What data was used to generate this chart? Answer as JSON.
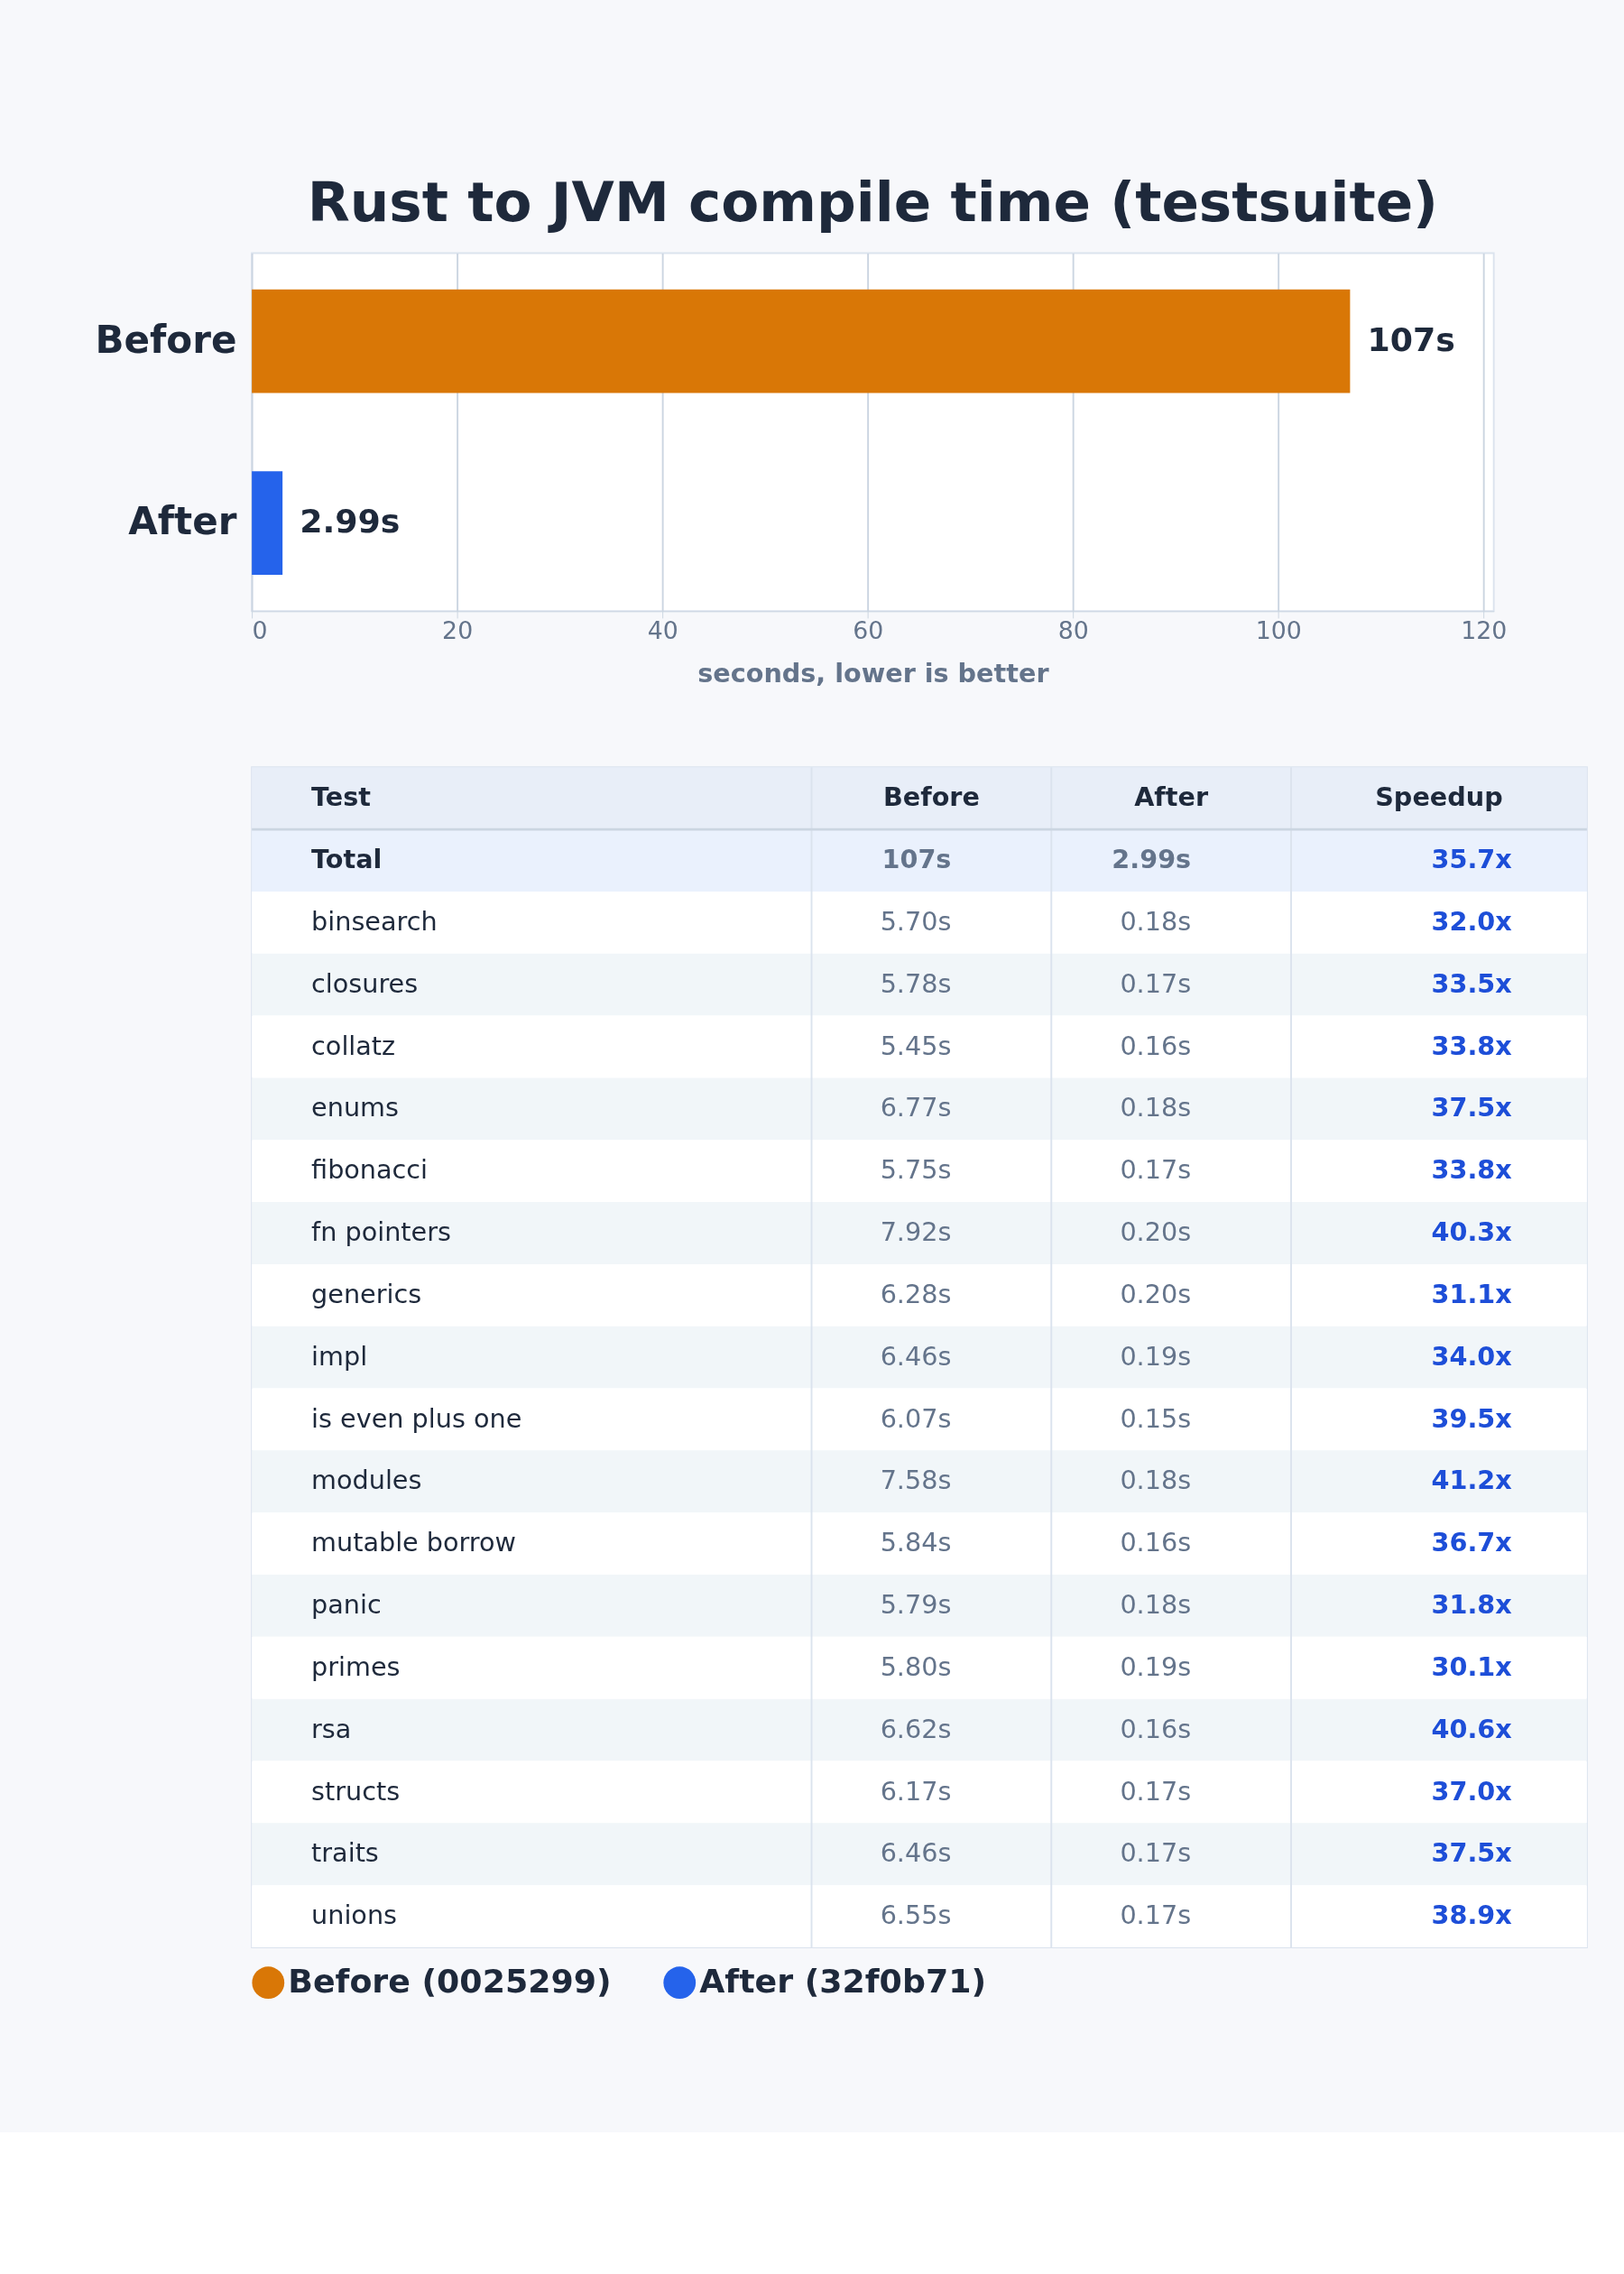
{
  "chart_data": [
    {
      "type": "bar",
      "orientation": "horizontal",
      "title": "Rust to JVM compile time (testsuite)",
      "xlabel": "seconds, lower is better",
      "categories": [
        "Before",
        "After"
      ],
      "series": [
        {
          "name": "Before (0025299)",
          "color": "#d97706",
          "values": [
            107,
            null
          ],
          "value_labels": [
            "107s",
            null
          ]
        },
        {
          "name": "After (32f0b71)",
          "color": "#2563eb",
          "values": [
            null,
            2.99
          ],
          "value_labels": [
            null,
            "2.99s"
          ]
        }
      ],
      "xlim": [
        0,
        121
      ],
      "xticks": [
        0,
        20,
        40,
        60,
        80,
        100,
        120
      ],
      "grid": "x",
      "legend": "bottom"
    },
    {
      "type": "other",
      "categories": [
        "Test",
        "Before",
        "After",
        "Speedup"
      ],
      "annotations": [
        "Total",
        "107s",
        "2.99s",
        "35.7x",
        "binsearch",
        "5.70s",
        "0.18s",
        "32.0x",
        "closures",
        "5.78s",
        "0.17s",
        "33.5x",
        "collatz",
        "5.45s",
        "0.16s",
        "33.8x",
        "enums",
        "6.77s",
        "0.18s",
        "37.5x",
        "fibonacci",
        "5.75s",
        "0.17s",
        "33.8x",
        "fn pointers",
        "7.92s",
        "0.20s",
        "40.3x",
        "generics",
        "6.28s",
        "0.20s",
        "31.1x",
        "impl",
        "6.46s",
        "0.19s",
        "34.0x",
        "is even plus one",
        "6.07s",
        "0.15s",
        "39.5x",
        "modules",
        "7.58s",
        "0.18s",
        "41.2x",
        "mutable borrow",
        "5.84s",
        "0.16s",
        "36.7x",
        "panic",
        "5.79s",
        "0.18s",
        "31.8x",
        "primes",
        "5.80s",
        "0.19s",
        "30.1x",
        "rsa",
        "6.62s",
        "0.16s",
        "40.6x",
        "structs",
        "6.17s",
        "0.17s",
        "37.0x",
        "traits",
        "6.46s",
        "0.17s",
        "37.5x",
        "unions",
        "6.55s",
        "0.17s",
        "38.9x"
      ]
    }
  ]
}
